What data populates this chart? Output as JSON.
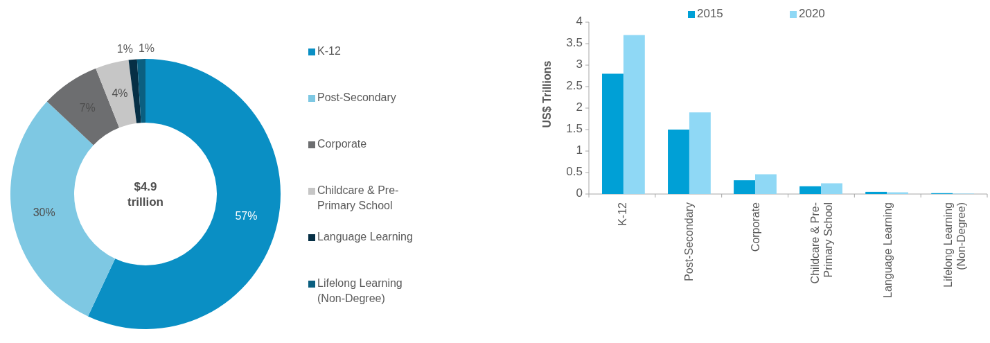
{
  "chart_data": [
    {
      "type": "donut",
      "categories": [
        "K-12",
        "Post-Secondary",
        "Corporate",
        "Childcare & Pre-Primary School",
        "Language Learning",
        "Lifelong Learning (Non-Degree)"
      ],
      "values": [
        57,
        30,
        7,
        4,
        1,
        1
      ],
      "value_labels": [
        "57%",
        "30%",
        "7%",
        "4%",
        "1%",
        "1%"
      ],
      "colors": [
        "#0a8fc4",
        "#7ec8e3",
        "#6d6e70",
        "#c6c6c6",
        "#062f45",
        "#0b5f80"
      ],
      "annotations": [
        "$4.9 trillion"
      ],
      "legend": "right"
    },
    {
      "type": "bar",
      "categories": [
        "K-12",
        "Post-Secondary",
        "Corporate",
        "Childcare & Pre-Primary School",
        "Language Learning",
        "Lifelong Learning (Non-Degree)"
      ],
      "ylabel": "US$ Trillions",
      "ylim": [
        0,
        4
      ],
      "yticks": [
        0,
        0.5,
        1,
        1.5,
        2,
        2.5,
        3,
        3.5,
        4
      ],
      "legend": "top",
      "series": [
        {
          "name": "2015",
          "color": "#00a0d6",
          "values": [
            2.8,
            1.5,
            0.32,
            0.18,
            0.05,
            0.02
          ]
        },
        {
          "name": "2020",
          "color": "#8fd8f5",
          "values": [
            3.7,
            1.9,
            0.46,
            0.25,
            0.04,
            0.01
          ]
        }
      ]
    }
  ]
}
